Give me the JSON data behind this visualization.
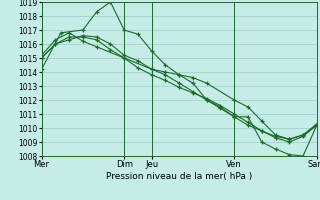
{
  "title": "Pression niveau de la mer( hPa )",
  "background_color": "#c5ece6",
  "grid_color": "#9eccc6",
  "line_color": "#1a6b2a",
  "ylim": [
    1008,
    1019
  ],
  "yticks": [
    1008,
    1009,
    1010,
    1011,
    1012,
    1013,
    1014,
    1015,
    1016,
    1017,
    1018,
    1019
  ],
  "xtick_labels": [
    "Mer",
    "Dim",
    "Jeu",
    "Ven",
    "Sam"
  ],
  "xtick_positions": [
    0.0,
    3.0,
    4.0,
    7.0,
    10.0
  ],
  "vlines": [
    0.0,
    3.0,
    4.0,
    7.0,
    10.0
  ],
  "xlim": [
    0,
    10
  ],
  "series": [
    {
      "x": [
        0.0,
        0.5,
        1.0,
        1.5,
        2.0,
        2.5,
        3.0,
        3.5,
        4.0,
        4.5,
        5.0,
        5.5,
        6.0,
        6.5,
        7.0,
        7.5,
        8.0,
        8.5,
        9.0,
        9.5,
        10.0
      ],
      "y": [
        1015.0,
        1016.0,
        1016.3,
        1016.6,
        1016.5,
        1016.0,
        1015.2,
        1014.8,
        1014.2,
        1013.8,
        1013.2,
        1012.6,
        1012.0,
        1011.4,
        1010.8,
        1010.2,
        1009.8,
        1009.3,
        1009.0,
        1009.4,
        1010.2
      ]
    },
    {
      "x": [
        0.0,
        0.5,
        1.0,
        1.5,
        2.0,
        2.5,
        3.0,
        3.5,
        4.0,
        4.5,
        5.0,
        5.5,
        6.0,
        6.5,
        7.0,
        7.5,
        8.0,
        8.5,
        9.0,
        9.5,
        10.0
      ],
      "y": [
        1015.0,
        1016.0,
        1016.5,
        1016.5,
        1016.3,
        1015.6,
        1015.0,
        1014.3,
        1013.8,
        1013.4,
        1012.9,
        1012.5,
        1012.1,
        1011.6,
        1011.0,
        1010.4,
        1009.8,
        1009.4,
        1009.2,
        1009.5,
        1010.2
      ]
    },
    {
      "x": [
        0.0,
        0.7,
        1.5,
        2.0,
        2.5,
        3.0,
        3.5,
        4.0,
        4.5,
        5.0,
        5.5,
        6.0,
        6.5,
        7.0,
        7.5,
        8.0,
        8.5,
        9.0,
        9.5,
        10.0
      ],
      "y": [
        1014.2,
        1016.8,
        1017.0,
        1018.3,
        1019.0,
        1017.0,
        1016.7,
        1015.5,
        1014.5,
        1013.8,
        1013.2,
        1012.0,
        1011.5,
        1010.8,
        1010.8,
        1009.0,
        1008.5,
        1008.1,
        1008.0,
        1010.2
      ]
    },
    {
      "x": [
        0.0,
        0.5,
        1.0,
        1.5,
        2.0,
        3.0,
        4.0,
        4.5,
        5.0,
        5.5,
        6.0,
        7.0,
        7.5,
        8.0,
        8.5,
        9.0,
        9.5,
        10.0
      ],
      "y": [
        1015.2,
        1016.3,
        1016.8,
        1016.2,
        1015.8,
        1015.0,
        1014.2,
        1014.0,
        1013.8,
        1013.6,
        1013.2,
        1012.0,
        1011.5,
        1010.5,
        1009.5,
        1009.2,
        1009.5,
        1010.3
      ]
    }
  ]
}
